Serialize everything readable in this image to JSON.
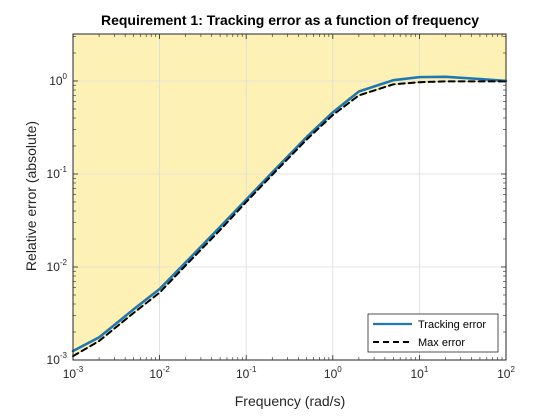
{
  "chart_data": {
    "type": "line",
    "title": "Requirement 1: Tracking error as a function of frequency",
    "xlabel": "Frequency (rad/s)",
    "ylabel": "Relative error (absolute)",
    "xscale": "log",
    "yscale": "log",
    "xlim": [
      0.001,
      100
    ],
    "ylim": [
      0.001,
      3.2
    ],
    "grid": true,
    "legend_position": "bottom-right",
    "x_ticks": [
      {
        "base": "10",
        "exp": "-3"
      },
      {
        "base": "10",
        "exp": "-2"
      },
      {
        "base": "10",
        "exp": "-1"
      },
      {
        "base": "10",
        "exp": "0"
      },
      {
        "base": "10",
        "exp": "1"
      },
      {
        "base": "10",
        "exp": "2"
      }
    ],
    "y_ticks": [
      {
        "base": "10",
        "exp": "-3"
      },
      {
        "base": "10",
        "exp": "-2"
      },
      {
        "base": "10",
        "exp": "-1"
      },
      {
        "base": "10",
        "exp": "0"
      }
    ],
    "x": [
      0.001,
      0.002,
      0.005,
      0.01,
      0.02,
      0.05,
      0.1,
      0.2,
      0.5,
      1,
      2,
      5,
      10,
      20,
      50,
      100
    ],
    "series": [
      {
        "name": "Tracking error",
        "color": "#1f77b4",
        "style": "solid",
        "values": [
          0.00125,
          0.00175,
          0.0035,
          0.0058,
          0.0112,
          0.027,
          0.053,
          0.104,
          0.25,
          0.46,
          0.77,
          1.02,
          1.1,
          1.11,
          1.05,
          1.0
        ]
      },
      {
        "name": "Max error",
        "color": "#000000",
        "style": "dashed",
        "values": [
          0.0011,
          0.0016,
          0.0032,
          0.0053,
          0.0104,
          0.025,
          0.05,
          0.098,
          0.235,
          0.43,
          0.7,
          0.92,
          0.97,
          0.99,
          0.99,
          0.99
        ]
      }
    ],
    "shaded_region": {
      "description_color": "#fdf1b6",
      "edge_color": "#f2df7a",
      "follows_series": "Max error"
    }
  }
}
